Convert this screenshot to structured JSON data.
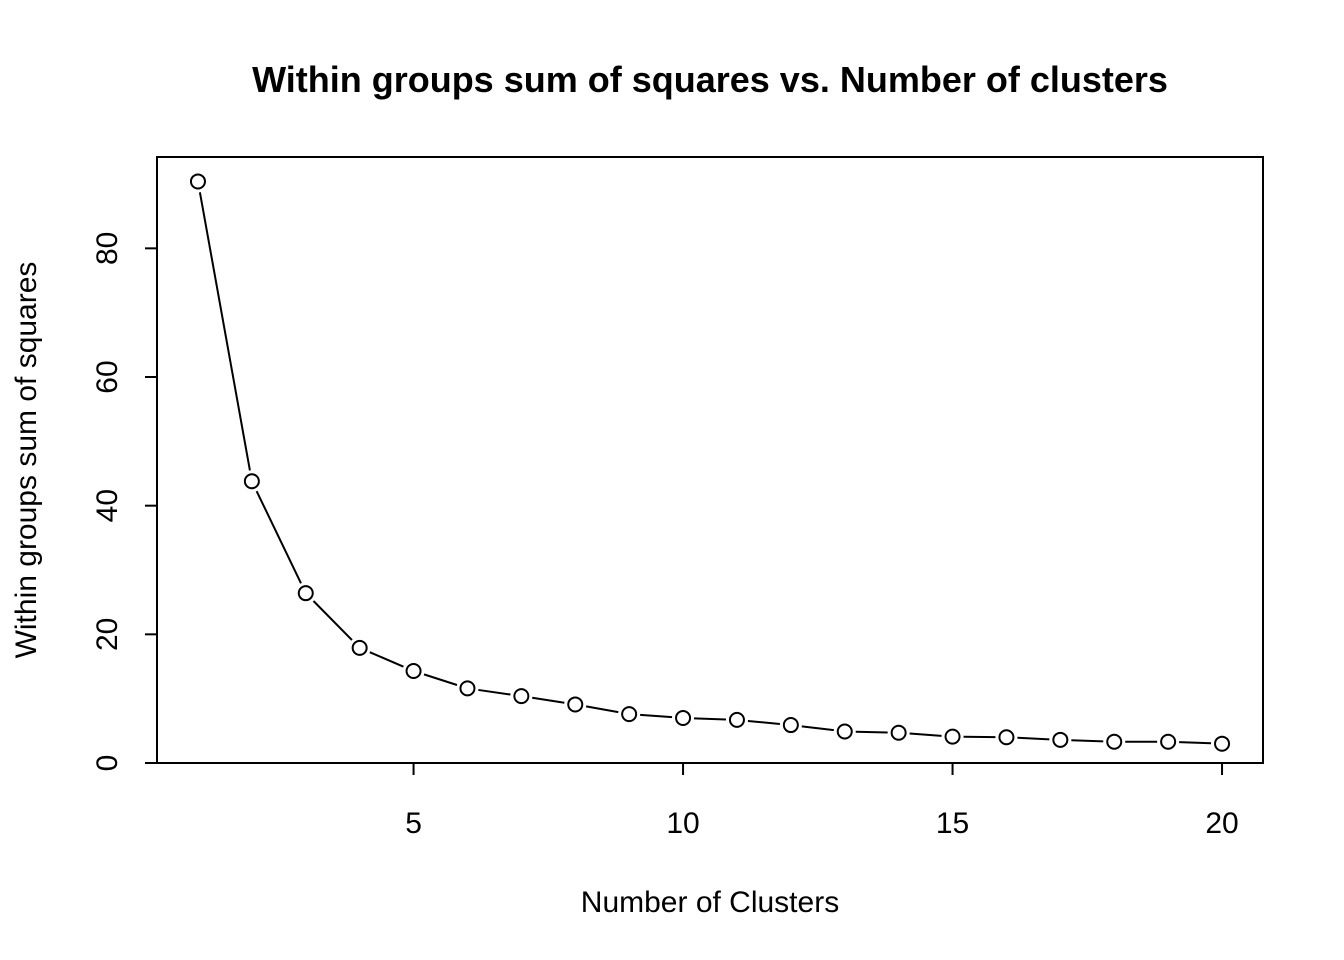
{
  "chart_data": {
    "type": "line",
    "title": "Within groups sum of squares vs. Number of clusters",
    "xlabel": "Number of Clusters",
    "ylabel": "Within groups sum of squares",
    "xlim": [
      0.24,
      20.76
    ],
    "ylim": [
      0,
      94.2
    ],
    "x_ticks": [
      5,
      10,
      15,
      20
    ],
    "y_ticks": [
      0,
      20,
      40,
      60,
      80
    ],
    "x_tick_labels": [
      "5",
      "10",
      "15",
      "20"
    ],
    "y_tick_labels": [
      "0",
      "20",
      "40",
      "60",
      "80"
    ],
    "grid": false,
    "legend": "none",
    "marker": "open-circle",
    "line_style": "solid, gaps at points",
    "series": [
      {
        "x": [
          1,
          2,
          3,
          4,
          5,
          6,
          7,
          8,
          9,
          10,
          11,
          12,
          13,
          14,
          15,
          16,
          17,
          18,
          19,
          20
        ],
        "values": [
          90.4,
          43.8,
          26.4,
          17.9,
          14.3,
          11.6,
          10.4,
          9.1,
          7.6,
          7.0,
          6.7,
          5.9,
          4.9,
          4.7,
          4.1,
          4.0,
          3.6,
          3.3,
          3.3,
          3.0
        ]
      }
    ],
    "colors": {
      "line": "#000000",
      "marker_fill": "#ffffff",
      "frame": "#000000",
      "background": "#ffffff"
    }
  }
}
